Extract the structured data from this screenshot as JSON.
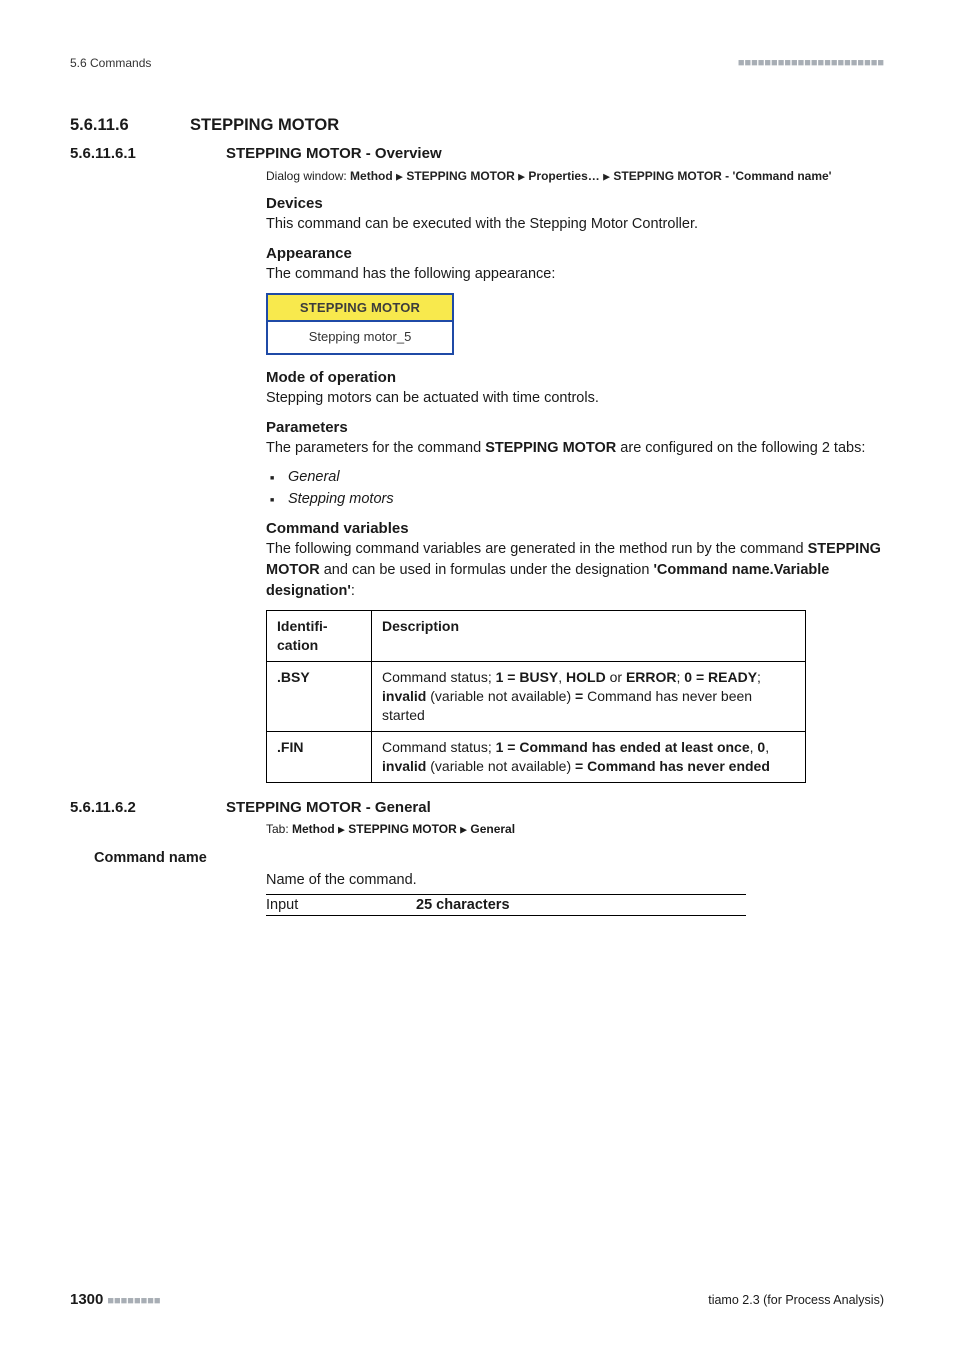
{
  "header": {
    "left": "5.6 Commands",
    "dashes": "■■■■■■■■■■■■■■■■■■■■■■"
  },
  "sec": {
    "num": "5.6.11.6",
    "title": "STEPPING MOTOR"
  },
  "sub1": {
    "num": "5.6.11.6.1",
    "title": "STEPPING MOTOR - Overview",
    "dialog_prefix": "Dialog window: ",
    "dialog_parts": [
      "Method",
      "STEPPING MOTOR",
      "Properties…",
      "STEPPING MOTOR - 'Command name'"
    ],
    "devices_h": "Devices",
    "devices_p": "This command can be executed with the Stepping Motor Controller.",
    "appearance_h": "Appearance",
    "appearance_p": "The command has the following appearance:",
    "badge_top": "STEPPING MOTOR",
    "badge_bot": "Stepping motor_5",
    "mode_h": "Mode of operation",
    "mode_p": "Stepping motors can be actuated with time controls.",
    "params_h": "Parameters",
    "params_p_pre": "The parameters for the command ",
    "params_p_b": "STEPPING MOTOR",
    "params_p_post": " are configured on the following 2 tabs:",
    "param_items": [
      "General",
      "Stepping motors"
    ],
    "cmdvar_h": "Command variables",
    "cmdvar_p_1": "The following command variables are generated in the method run by the command ",
    "cmdvar_p_b1": "STEPPING MOTOR",
    "cmdvar_p_2": " and can be used in formulas under the designation ",
    "cmdvar_p_b2": "'Command name.Variable designation'",
    "cmdvar_p_3": ":",
    "table": {
      "h1": "Identifi­cation",
      "h2": "Description",
      "rows": [
        {
          "id": ".BSY",
          "desc_parts": [
            {
              "t": "Command status; "
            },
            {
              "t": "1 = BUSY",
              "b": true
            },
            {
              "t": ", "
            },
            {
              "t": "HOLD",
              "b": true
            },
            {
              "t": " or "
            },
            {
              "t": "ERROR",
              "b": true
            },
            {
              "t": "; "
            },
            {
              "t": "0 = READY",
              "b": true
            },
            {
              "t": "; "
            },
            {
              "t": "invalid",
              "b": true
            },
            {
              "t": " (variable not available) "
            },
            {
              "t": "=",
              "b": true
            },
            {
              "t": " Command has never been started"
            }
          ]
        },
        {
          "id": ".FIN",
          "desc_parts": [
            {
              "t": "Command status; "
            },
            {
              "t": "1 = Command has ended at least once",
              "b": true
            },
            {
              "t": ", "
            },
            {
              "t": "0",
              "b": true
            },
            {
              "t": ", "
            },
            {
              "t": "invalid",
              "b": true
            },
            {
              "t": " (variable not available) "
            },
            {
              "t": "= Command has never ended",
              "b": true
            }
          ]
        }
      ]
    }
  },
  "sub2": {
    "num": "5.6.11.6.2",
    "title": "STEPPING MOTOR - General",
    "tab_prefix": "Tab: ",
    "tab_parts": [
      "Method",
      "STEPPING MOTOR",
      "General"
    ],
    "field_label": "Command name",
    "field_desc": "Name of the command.",
    "input_lbl": "Input",
    "input_val": "25 characters"
  },
  "footer": {
    "page": "1300",
    "dashes": "■■■■■■■■",
    "right": "tiamo 2.3 (for Process Analysis)"
  }
}
